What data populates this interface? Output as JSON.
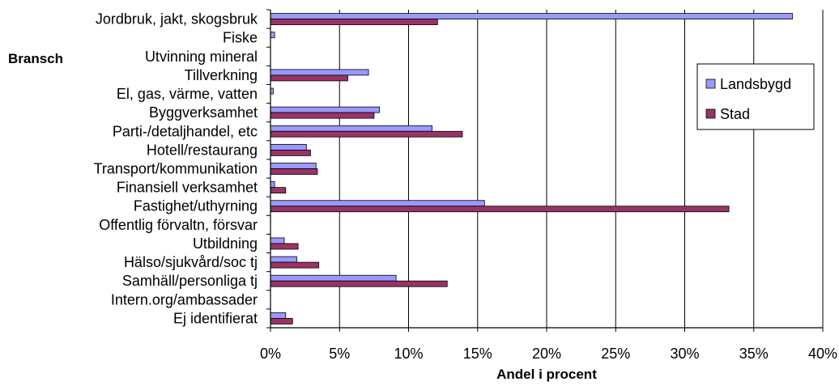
{
  "chart_data": {
    "type": "bar",
    "orientation": "horizontal",
    "title": "",
    "xlabel": "Andel i procent",
    "ylabel": "Bransch",
    "xlim": [
      0,
      40
    ],
    "xticks": [
      "0%",
      "5%",
      "10%",
      "15%",
      "20%",
      "25%",
      "30%",
      "35%",
      "40%"
    ],
    "grid": true,
    "legend_position": "right",
    "categories": [
      "Jordbruk, jakt, skogsbruk",
      "Fiske",
      "Utvinning mineral",
      "Tillverkning",
      "El, gas, värme, vatten",
      "Byggverksamhet",
      "Parti-/detaljhandel, etc",
      "Hotell/restaurang",
      "Transport/kommunikation",
      "Finansiell verksamhet",
      "Fastighet/uthyrning",
      "Offentlig förvaltn, försvar",
      "Utbildning",
      "Hälso/sjukvård/soc tj",
      "Samhäll/personliga tj",
      "Intern.org/ambassader",
      "Ej identifierat"
    ],
    "series": [
      {
        "name": "Landsbygd",
        "color": "#9999ff",
        "values": [
          37.8,
          0.3,
          0,
          7.1,
          0.2,
          7.9,
          11.7,
          2.6,
          3.3,
          0.3,
          15.5,
          0,
          1.0,
          1.9,
          9.1,
          0,
          1.1
        ]
      },
      {
        "name": "Stad",
        "color": "#993366",
        "values": [
          12.1,
          0,
          0,
          5.6,
          0,
          7.5,
          13.9,
          2.9,
          3.4,
          1.1,
          33.2,
          0,
          2.0,
          3.5,
          12.8,
          0,
          1.6
        ]
      }
    ]
  }
}
